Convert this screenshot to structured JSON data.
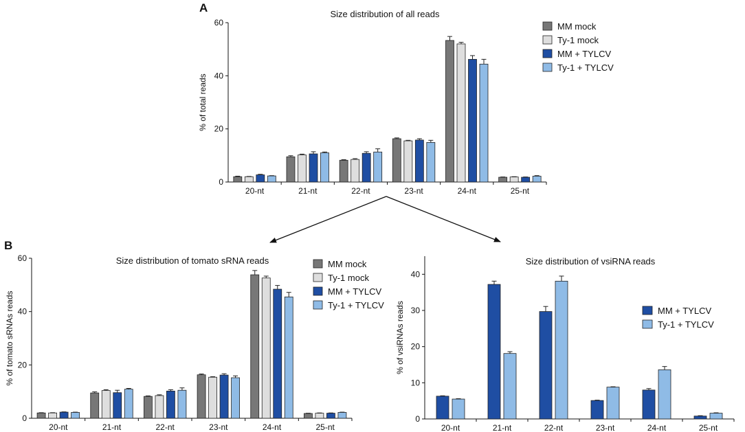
{
  "panel_labels": {
    "a": "A",
    "b": "B"
  },
  "series_colors": {
    "MM mock": "#777777",
    "Ty-1 mock": "#dedede",
    "MM + TYLCV": "#1f4ea3",
    "Ty-1 + TYLCV": "#8fbbe6"
  },
  "chart_data": [
    {
      "type": "bar",
      "title": "Size distribution of all reads",
      "xlabel": "",
      "ylabel": "% of total reads",
      "categories": [
        "20-nt",
        "21-nt",
        "22-nt",
        "23-nt",
        "24-nt",
        "25-nt"
      ],
      "ylim": [
        0,
        60
      ],
      "yticks": [
        0,
        20,
        40,
        60
      ],
      "legend_position": "top-right",
      "error_bars": true,
      "series": [
        {
          "name": "MM mock",
          "values": [
            2.0,
            9.5,
            8.2,
            16.3,
            53.3,
            1.8
          ],
          "errors": [
            0.2,
            0.4,
            0.2,
            0.3,
            1.5,
            0.1
          ]
        },
        {
          "name": "Ty-1 mock",
          "values": [
            2.0,
            10.2,
            8.5,
            15.5,
            52.0,
            1.9
          ],
          "errors": [
            0.1,
            0.3,
            0.3,
            0.2,
            0.6,
            0.1
          ]
        },
        {
          "name": "MM + TYLCV",
          "values": [
            2.7,
            10.6,
            10.8,
            15.8,
            46.2,
            1.8
          ],
          "errors": [
            0.2,
            0.8,
            0.6,
            0.5,
            1.4,
            0.1
          ]
        },
        {
          "name": "Ty-1 + TYLCV",
          "values": [
            2.3,
            11.0,
            11.3,
            14.9,
            44.4,
            2.2
          ],
          "errors": [
            0.1,
            0.3,
            1.2,
            0.8,
            1.8,
            0.2
          ]
        }
      ]
    },
    {
      "type": "bar",
      "title": "Size distribution of tomato sRNA reads",
      "xlabel": "",
      "ylabel": "% of tomato sRNAs reads",
      "categories": [
        "20-nt",
        "21-nt",
        "22-nt",
        "23-nt",
        "24-nt",
        "25-nt"
      ],
      "ylim": [
        0,
        60
      ],
      "yticks": [
        0,
        20,
        40,
        60
      ],
      "legend_position": "top-right",
      "error_bars": true,
      "series": [
        {
          "name": "MM mock",
          "values": [
            2.0,
            9.5,
            8.2,
            16.3,
            53.8,
            1.8
          ],
          "errors": [
            0.1,
            0.4,
            0.2,
            0.3,
            1.6,
            0.1
          ]
        },
        {
          "name": "Ty-1 mock",
          "values": [
            2.0,
            10.4,
            8.5,
            15.4,
            52.6,
            1.9
          ],
          "errors": [
            0.1,
            0.3,
            0.3,
            0.2,
            0.7,
            0.1
          ]
        },
        {
          "name": "MM + TYLCV",
          "values": [
            2.3,
            9.6,
            10.2,
            16.2,
            48.4,
            1.9
          ],
          "errors": [
            0.1,
            0.9,
            0.5,
            0.5,
            1.4,
            0.1
          ]
        },
        {
          "name": "Ty-1 + TYLCV",
          "values": [
            2.2,
            10.9,
            10.5,
            15.2,
            45.5,
            2.2
          ],
          "errors": [
            0.1,
            0.3,
            0.9,
            0.7,
            1.7,
            0.1
          ]
        }
      ]
    },
    {
      "type": "bar",
      "title": "Size distribution of vsiRNA reads",
      "xlabel": "",
      "ylabel": "% of vsiRNAs reads",
      "categories": [
        "20-nt",
        "21-nt",
        "22-nt",
        "23-nt",
        "24-nt",
        "25-nt"
      ],
      "ylim": [
        0,
        45
      ],
      "yticks": [
        0,
        10,
        20,
        30,
        40
      ],
      "legend_position": "right",
      "error_bars": true,
      "series": [
        {
          "name": "MM + TYLCV",
          "values": [
            6.3,
            37.2,
            29.7,
            5.1,
            8.0,
            0.8
          ],
          "errors": [
            0.1,
            0.9,
            1.4,
            0.1,
            0.4,
            0.1
          ]
        },
        {
          "name": "Ty-1 + TYLCV",
          "values": [
            5.5,
            18.1,
            38.1,
            8.8,
            13.6,
            1.6
          ],
          "errors": [
            0.1,
            0.5,
            1.4,
            0.1,
            0.9,
            0.1
          ]
        }
      ]
    }
  ]
}
